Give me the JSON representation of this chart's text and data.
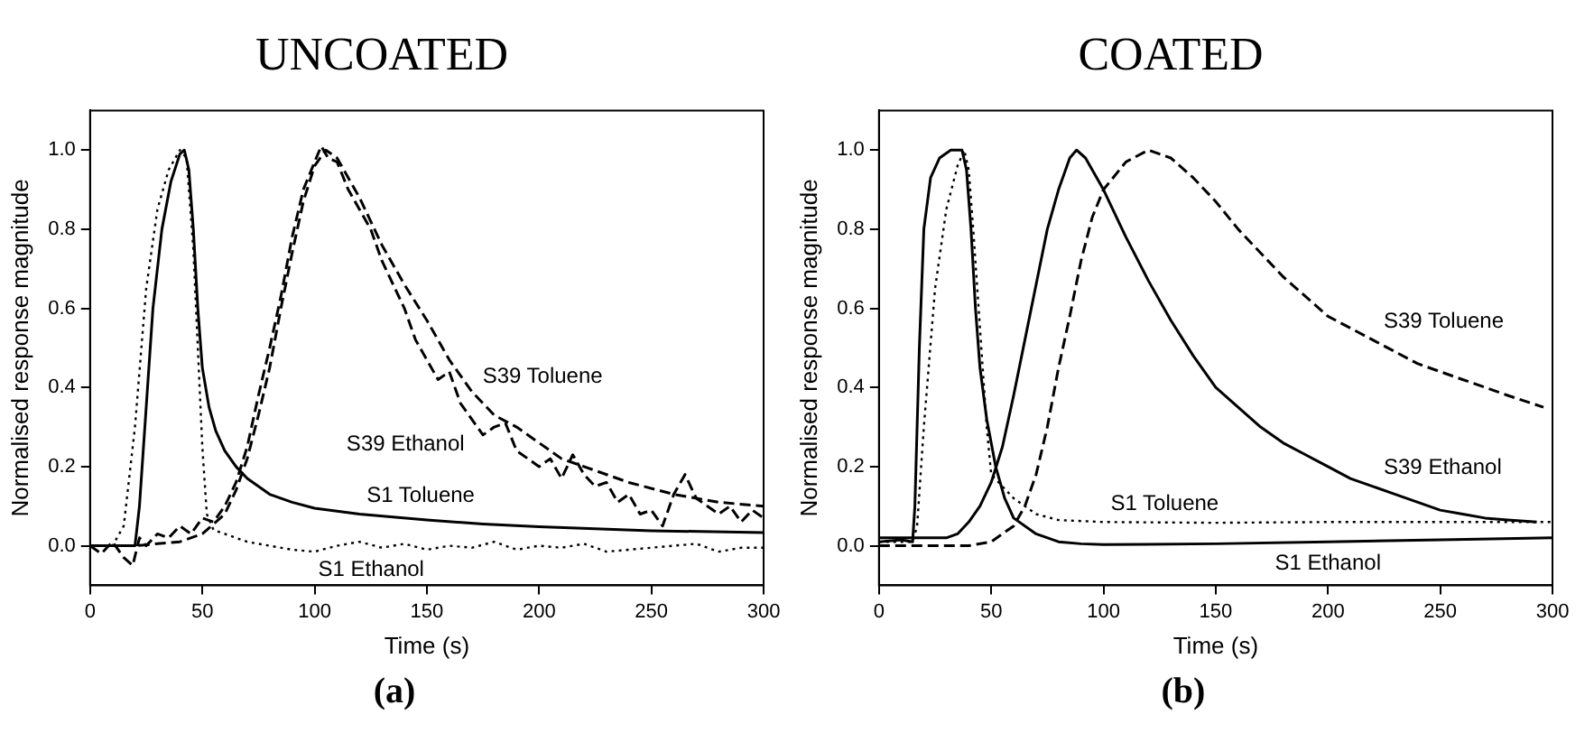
{
  "chart_data": [
    {
      "type": "line",
      "title": "UNCOATED",
      "xlabel": "Time (s)",
      "ylabel": "Normalised response magnitude",
      "annotations": [
        "(a)"
      ],
      "xlim": [
        0,
        300
      ],
      "xticks": [
        0,
        50,
        100,
        150,
        200,
        250,
        300
      ],
      "ylim": [
        -0.1,
        1.1
      ],
      "yticks": [
        {
          "value": 0,
          "label": "0.0"
        },
        {
          "value": 0.2,
          "label": "0.2"
        },
        {
          "value": 0.4,
          "label": "0.4"
        },
        {
          "value": 0.6,
          "label": "0.6"
        },
        {
          "value": 0.8,
          "label": "0.8"
        },
        {
          "value": 1,
          "label": "1.0"
        }
      ],
      "grid": false,
      "legend": false,
      "marker": "none",
      "series": [
        {
          "name": "S1 Toluene",
          "color": "#000000",
          "line_style": "solid",
          "x": [
            0,
            10,
            20,
            22,
            25,
            28,
            32,
            36,
            40,
            42,
            44,
            46,
            48,
            50,
            53,
            56,
            60,
            65,
            70,
            80,
            90,
            100,
            120,
            150,
            175,
            200,
            250,
            300
          ],
          "values": [
            0,
            0,
            0,
            0.1,
            0.35,
            0.6,
            0.8,
            0.92,
            0.99,
            1.0,
            0.95,
            0.8,
            0.6,
            0.45,
            0.35,
            0.29,
            0.24,
            0.2,
            0.17,
            0.13,
            0.11,
            0.095,
            0.08,
            0.065,
            0.055,
            0.048,
            0.038,
            0.033
          ]
        },
        {
          "name": "S1 Ethanol",
          "color": "#000000",
          "line_style": "dotted",
          "x": [
            0,
            10,
            15,
            20,
            25,
            30,
            35,
            40,
            43,
            46,
            48,
            50,
            52,
            55,
            60,
            70,
            80,
            90,
            100,
            110,
            120,
            130,
            140,
            150,
            160,
            170,
            180,
            190,
            200,
            210,
            220,
            230,
            240,
            250,
            260,
            270,
            280,
            290,
            300
          ],
          "values": [
            0,
            0,
            0.05,
            0.3,
            0.65,
            0.85,
            0.95,
            1.0,
            0.98,
            0.75,
            0.5,
            0.25,
            0.08,
            0.04,
            0.03,
            0.01,
            0,
            -0.01,
            -0.015,
            0,
            0.01,
            -0.005,
            0.005,
            -0.01,
            0,
            -0.005,
            0.01,
            -0.01,
            0,
            -0.005,
            0.005,
            -0.015,
            -0.01,
            -0.005,
            0,
            0.005,
            -0.015,
            -0.005,
            -0.005
          ]
        },
        {
          "name": "S39 Toluene",
          "color": "#000000",
          "line_style": "dashed",
          "x": [
            0,
            20,
            40,
            50,
            60,
            65,
            70,
            75,
            80,
            85,
            90,
            95,
            100,
            105,
            110,
            120,
            130,
            140,
            150,
            160,
            170,
            180,
            190,
            200,
            210,
            220,
            240,
            260,
            280,
            300
          ],
          "values": [
            0,
            0,
            0.01,
            0.03,
            0.08,
            0.14,
            0.22,
            0.33,
            0.45,
            0.6,
            0.74,
            0.87,
            0.96,
            1.0,
            0.98,
            0.88,
            0.76,
            0.66,
            0.57,
            0.47,
            0.39,
            0.33,
            0.3,
            0.26,
            0.22,
            0.2,
            0.16,
            0.13,
            0.11,
            0.1
          ]
        },
        {
          "name": "S39 Ethanol",
          "color": "#000000",
          "line_style": "dashed",
          "x": [
            0,
            5,
            10,
            15,
            19,
            22,
            25,
            30,
            35,
            40,
            45,
            50,
            55,
            60,
            65,
            70,
            75,
            80,
            85,
            90,
            95,
            100,
            103,
            106,
            110,
            115,
            120,
            125,
            130,
            135,
            140,
            145,
            150,
            155,
            160,
            165,
            170,
            175,
            180,
            185,
            190,
            195,
            200,
            205,
            210,
            215,
            220,
            225,
            230,
            235,
            240,
            245,
            250,
            255,
            260,
            265,
            270,
            275,
            280,
            285,
            290,
            295,
            300
          ],
          "values": [
            0,
            -0.02,
            0.01,
            -0.03,
            -0.05,
            0.02,
            0,
            0.03,
            0.02,
            0.05,
            0.03,
            0.07,
            0.06,
            0.1,
            0.16,
            0.25,
            0.38,
            0.5,
            0.63,
            0.78,
            0.9,
            0.97,
            1.01,
            0.98,
            0.97,
            0.9,
            0.85,
            0.8,
            0.72,
            0.66,
            0.6,
            0.52,
            0.47,
            0.42,
            0.44,
            0.36,
            0.32,
            0.28,
            0.3,
            0.31,
            0.24,
            0.22,
            0.2,
            0.22,
            0.17,
            0.23,
            0.18,
            0.15,
            0.16,
            0.11,
            0.13,
            0.08,
            0.09,
            0.05,
            0.13,
            0.18,
            0.12,
            0.1,
            0.08,
            0.1,
            0.06,
            0.09,
            0.07
          ]
        }
      ]
    },
    {
      "type": "line",
      "title": "COATED",
      "xlabel": "Time (s)",
      "ylabel": "Normalised response magnitude",
      "annotations": [
        "(b)"
      ],
      "xlim": [
        0,
        300
      ],
      "xticks": [
        0,
        50,
        100,
        150,
        200,
        250,
        300
      ],
      "ylim": [
        -0.1,
        1.1
      ],
      "yticks": [
        {
          "value": 0,
          "label": "0.0"
        },
        {
          "value": 0.2,
          "label": "0.2"
        },
        {
          "value": 0.4,
          "label": "0.4"
        },
        {
          "value": 0.6,
          "label": "0.6"
        },
        {
          "value": 0.8,
          "label": "0.8"
        },
        {
          "value": 1,
          "label": "1.0"
        }
      ],
      "grid": false,
      "legend": false,
      "marker": "none",
      "series": [
        {
          "name": "S1 Ethanol",
          "color": "#000000",
          "line_style": "solid",
          "x": [
            0,
            10,
            15,
            16,
            18,
            20,
            23,
            27,
            32,
            37,
            39,
            41,
            43,
            45,
            48,
            52,
            56,
            60,
            70,
            80,
            90,
            100,
            150,
            200,
            250,
            300
          ],
          "values": [
            0.01,
            0.015,
            0.01,
            0.1,
            0.5,
            0.8,
            0.93,
            0.98,
            1.0,
            1.0,
            0.95,
            0.8,
            0.6,
            0.45,
            0.32,
            0.2,
            0.12,
            0.07,
            0.03,
            0.01,
            0.005,
            0.003,
            0.005,
            0.01,
            0.015,
            0.02
          ]
        },
        {
          "name": "S1 Toluene",
          "color": "#000000",
          "line_style": "dotted",
          "x": [
            0,
            15,
            17,
            20,
            25,
            30,
            35,
            38,
            40,
            42,
            45,
            48,
            50,
            55,
            60,
            70,
            80,
            100,
            150,
            200,
            250,
            300
          ],
          "values": [
            0.01,
            0.01,
            0.05,
            0.3,
            0.65,
            0.85,
            0.96,
            1.0,
            0.95,
            0.8,
            0.55,
            0.3,
            0.18,
            0.15,
            0.12,
            0.08,
            0.065,
            0.06,
            0.058,
            0.06,
            0.06,
            0.06
          ]
        },
        {
          "name": "S39 Ethanol",
          "color": "#000000",
          "line_style": "solid",
          "x": [
            0,
            10,
            20,
            30,
            35,
            40,
            45,
            50,
            55,
            60,
            65,
            70,
            75,
            80,
            85,
            88,
            92,
            100,
            110,
            120,
            130,
            140,
            150,
            160,
            170,
            180,
            190,
            200,
            210,
            220,
            230,
            240,
            250,
            260,
            270,
            280,
            293
          ],
          "values": [
            0.02,
            0.02,
            0.02,
            0.02,
            0.03,
            0.06,
            0.1,
            0.16,
            0.25,
            0.38,
            0.52,
            0.66,
            0.8,
            0.9,
            0.98,
            1.0,
            0.98,
            0.9,
            0.78,
            0.67,
            0.57,
            0.48,
            0.4,
            0.35,
            0.3,
            0.26,
            0.23,
            0.2,
            0.17,
            0.15,
            0.13,
            0.11,
            0.09,
            0.08,
            0.07,
            0.065,
            0.06
          ]
        },
        {
          "name": "S39 Toluene",
          "color": "#000000",
          "line_style": "dashed",
          "x": [
            0,
            40,
            50,
            60,
            65,
            70,
            75,
            80,
            85,
            90,
            95,
            100,
            110,
            120,
            130,
            140,
            150,
            160,
            170,
            180,
            190,
            200,
            220,
            240,
            260,
            280,
            296
          ],
          "values": [
            0,
            0,
            0.01,
            0.05,
            0.1,
            0.18,
            0.3,
            0.45,
            0.58,
            0.72,
            0.83,
            0.9,
            0.97,
            1.0,
            0.98,
            0.93,
            0.87,
            0.8,
            0.74,
            0.68,
            0.63,
            0.58,
            0.52,
            0.46,
            0.42,
            0.38,
            0.35
          ]
        }
      ]
    }
  ]
}
